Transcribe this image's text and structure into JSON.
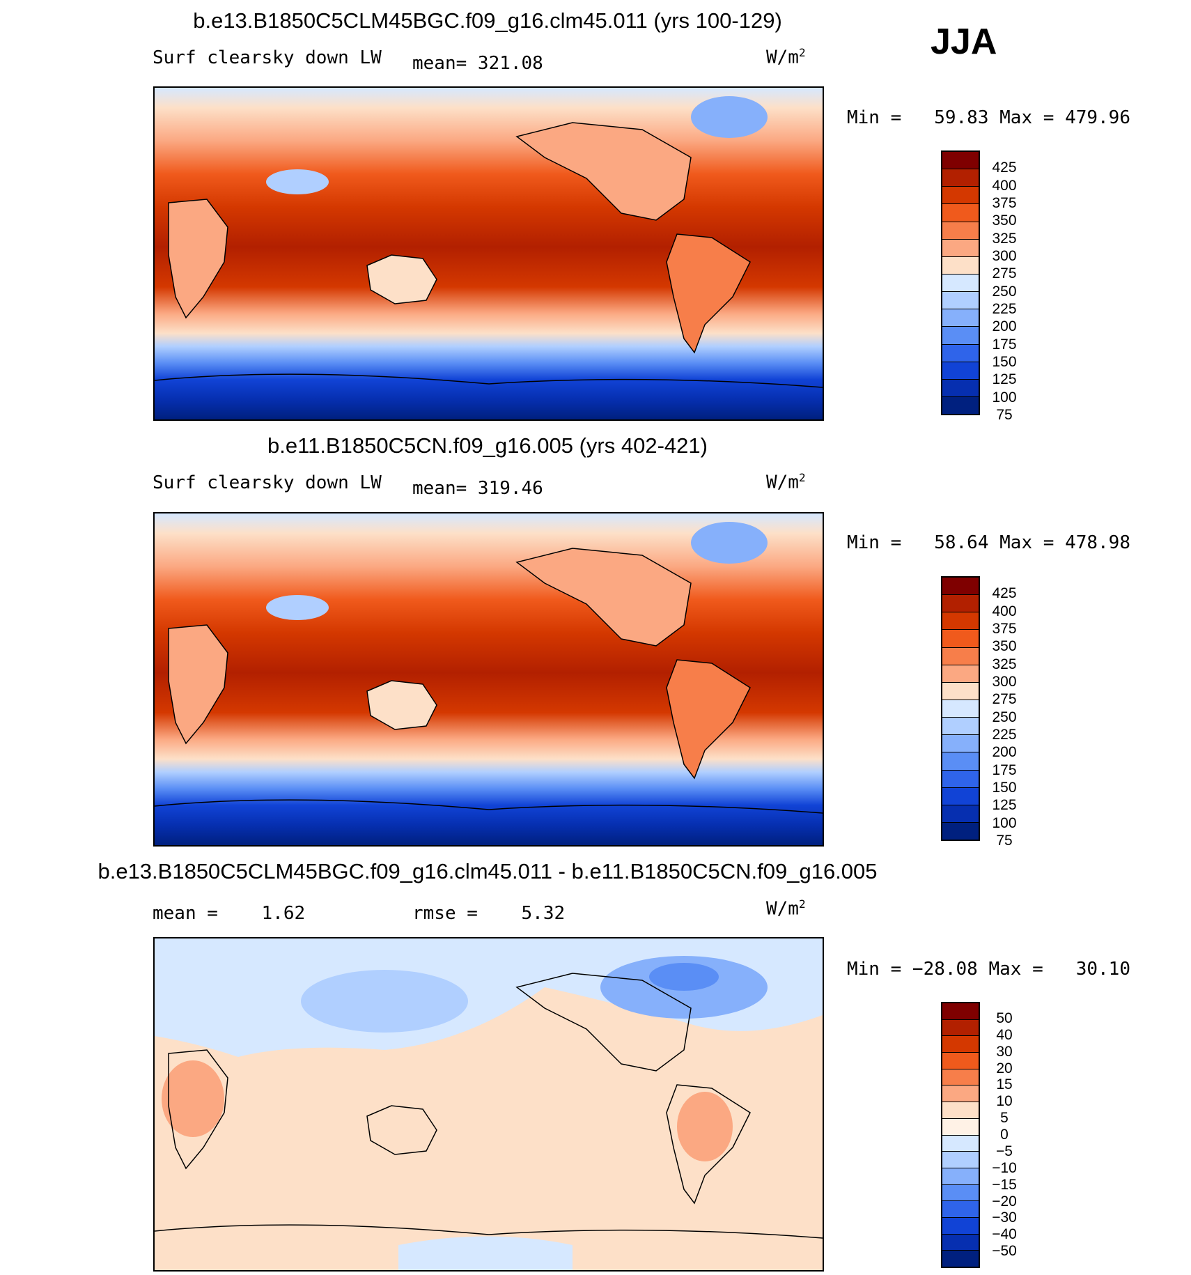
{
  "season": "JJA",
  "panels": [
    {
      "title": "b.e13.B1850C5CLM45BGC.f09_g16.clm45.011 (yrs 100-129)",
      "variable": "Surf clearsky down LW",
      "stat": "mean= 321.08",
      "units_base": "W/m",
      "units_sup": "2",
      "minmax": "Min =   59.83 Max = 479.96",
      "kind": "abs"
    },
    {
      "title": "b.e11.B1850C5CN.f09_g16.005 (yrs 402-421)",
      "variable": "Surf clearsky down LW",
      "stat": "mean= 319.46",
      "units_base": "W/m",
      "units_sup": "2",
      "minmax": "Min =   58.64 Max = 478.98",
      "kind": "abs"
    },
    {
      "title": "b.e13.B1850C5CLM45BGC.f09_g16.clm45.011 - b.e11.B1850C5CN.f09_g16.005",
      "variable": "mean =    1.62",
      "stat": "rmse =    5.32",
      "units_base": "W/m",
      "units_sup": "2",
      "minmax": "Min = −28.08 Max =   30.10",
      "kind": "diff"
    }
  ],
  "colorbars": {
    "abs": {
      "colors": [
        "#7f0000",
        "#b22000",
        "#d43800",
        "#f05a1c",
        "#f77e4a",
        "#fba882",
        "#fde0c8",
        "#d6e8ff",
        "#b0cfff",
        "#86b0fb",
        "#5a8ef5",
        "#2f64ea",
        "#1143d6",
        "#062fb0",
        "#00207f"
      ],
      "labels": [
        "425",
        "400",
        "375",
        "350",
        "325",
        "300",
        "275",
        "250",
        "225",
        "200",
        "175",
        "150",
        "125",
        "100",
        "75"
      ]
    },
    "diff": {
      "colors": [
        "#7f0000",
        "#b22000",
        "#d43800",
        "#f05a1c",
        "#f77e4a",
        "#fba882",
        "#fde0c8",
        "#fff2e6",
        "#d6e8ff",
        "#b0cfff",
        "#86b0fb",
        "#5a8ef5",
        "#2f64ea",
        "#1143d6",
        "#062fb0",
        "#00207f"
      ],
      "labels": [
        "50",
        "40",
        "30",
        "20",
        "15",
        "10",
        "5",
        "0",
        "−5",
        "−10",
        "−15",
        "−20",
        "−30",
        "−40",
        "−50"
      ]
    }
  },
  "chart_data": [
    {
      "type": "heatmap",
      "title": "b.e13.B1850C5CLM45BGC.f09_g16.clm45.011 (yrs 100-129)",
      "variable": "Surf clearsky down LW",
      "units": "W/m^2",
      "mean": 321.08,
      "min": 59.83,
      "max": 479.96,
      "levels": [
        75,
        100,
        125,
        150,
        175,
        200,
        225,
        250,
        275,
        300,
        325,
        350,
        375,
        400,
        425
      ]
    },
    {
      "type": "heatmap",
      "title": "b.e11.B1850C5CN.f09_g16.005 (yrs 402-421)",
      "variable": "Surf clearsky down LW",
      "units": "W/m^2",
      "mean": 319.46,
      "min": 58.64,
      "max": 478.98,
      "levels": [
        75,
        100,
        125,
        150,
        175,
        200,
        225,
        250,
        275,
        300,
        325,
        350,
        375,
        400,
        425
      ]
    },
    {
      "type": "heatmap",
      "title": "b.e13.B1850C5CLM45BGC.f09_g16.clm45.011 - b.e11.B1850C5CN.f09_g16.005",
      "units": "W/m^2",
      "mean": 1.62,
      "rmse": 5.32,
      "min": -28.08,
      "max": 30.1,
      "levels": [
        -50,
        -40,
        -30,
        -20,
        -15,
        -10,
        -5,
        0,
        5,
        10,
        15,
        20,
        30,
        40,
        50
      ]
    }
  ]
}
